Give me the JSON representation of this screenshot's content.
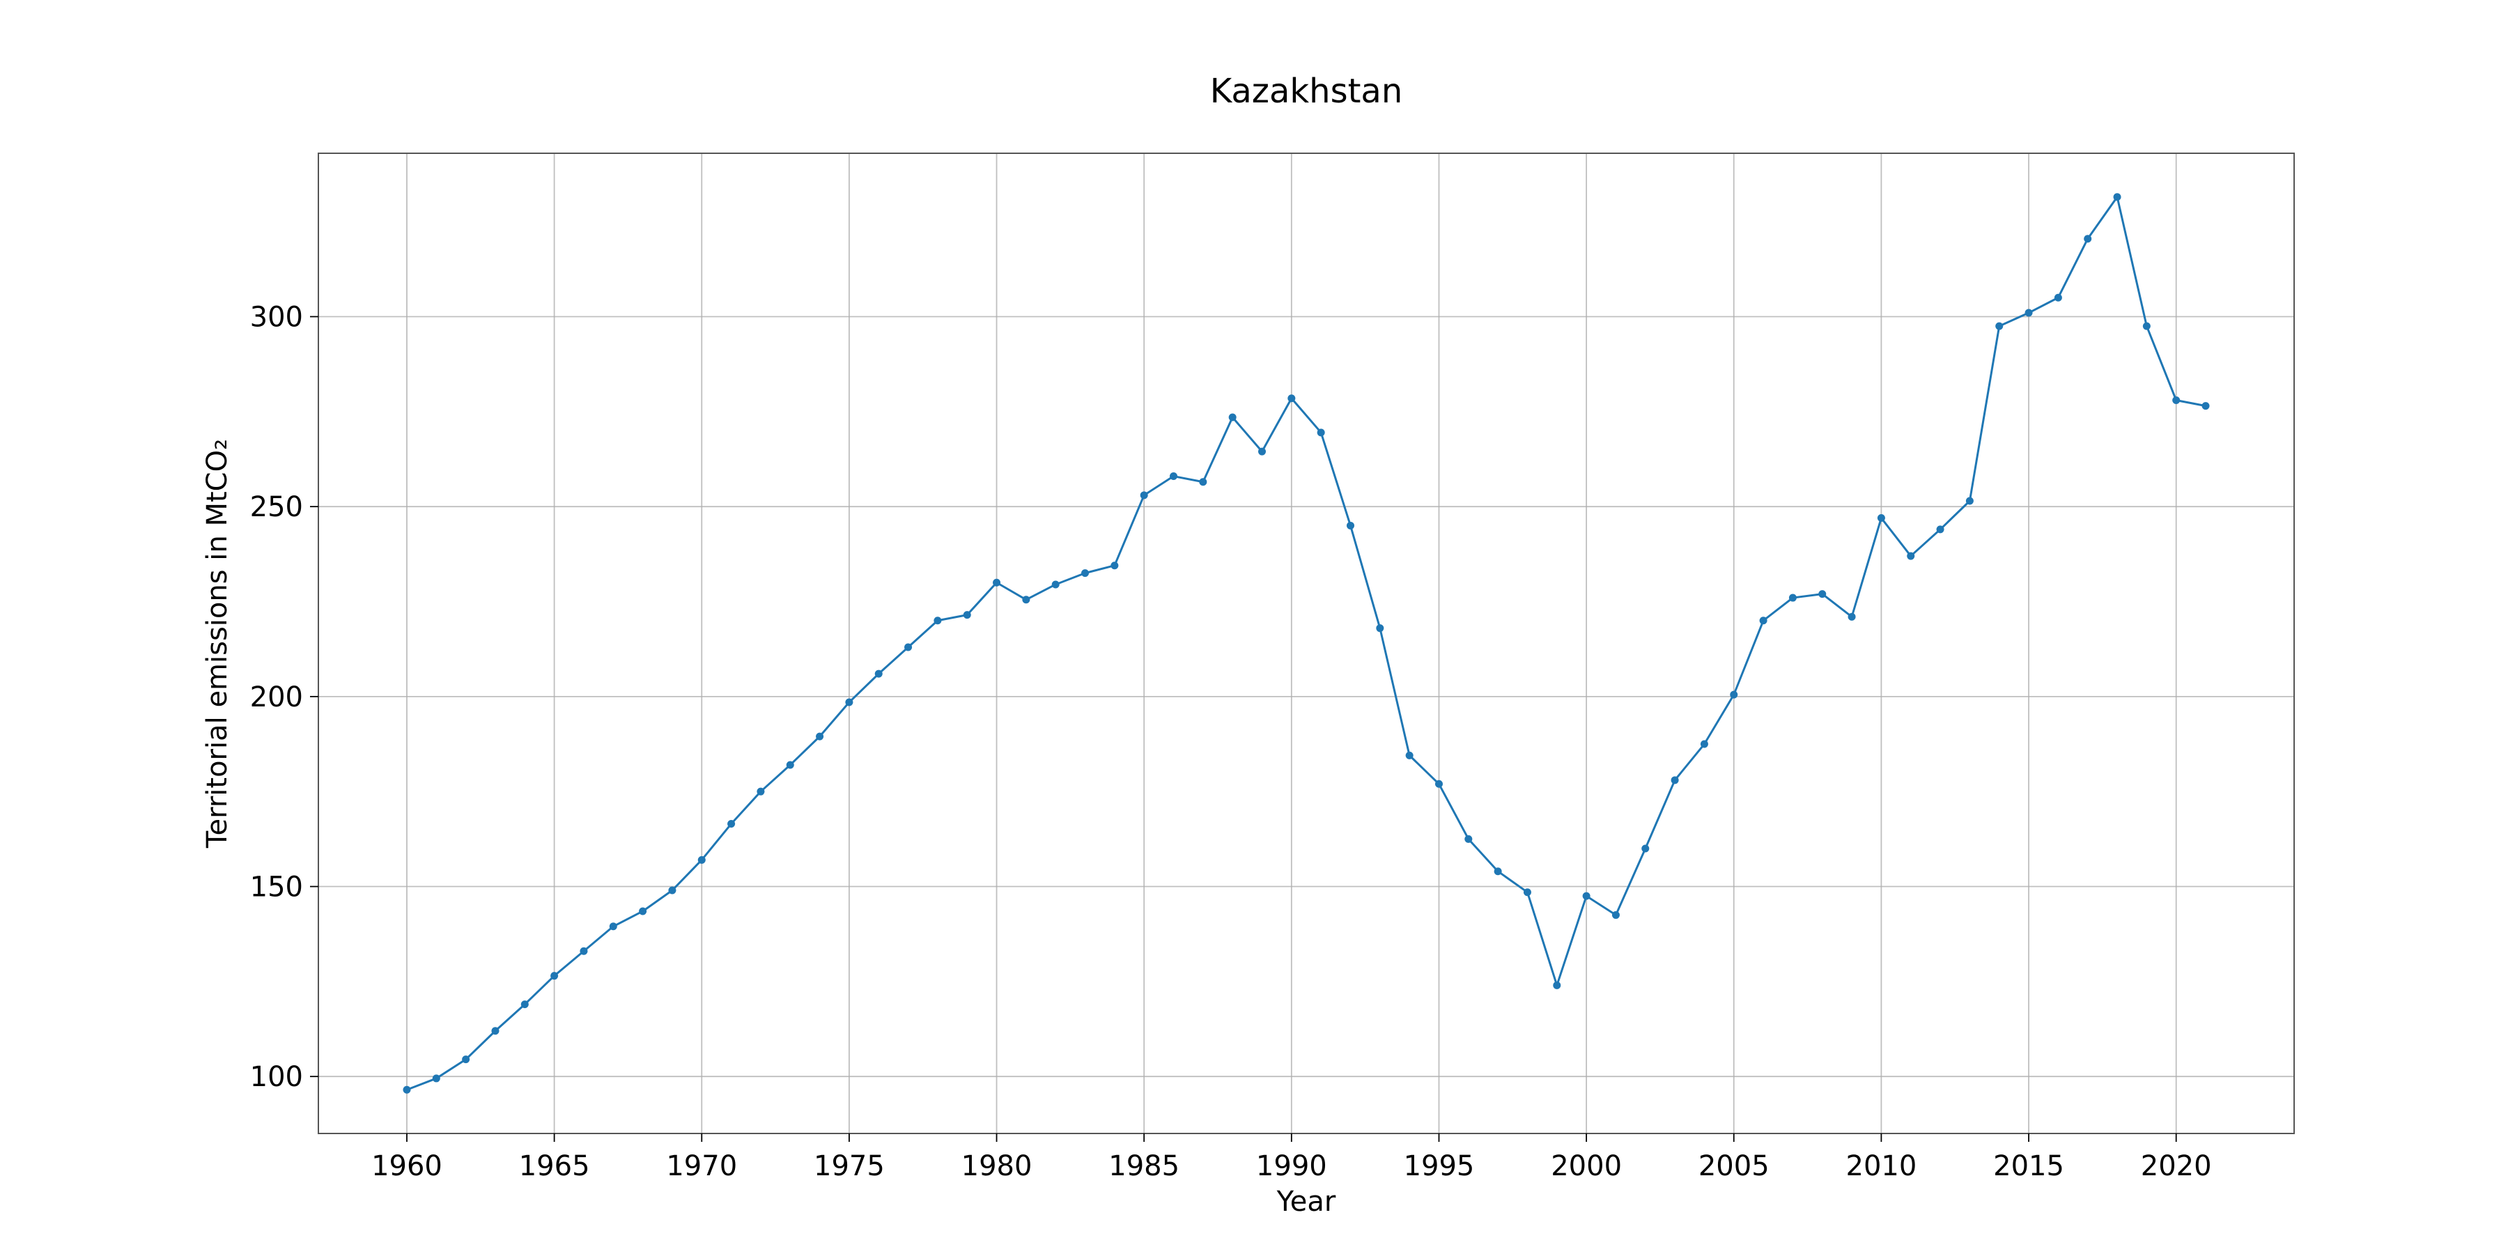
{
  "chart_data": {
    "type": "line",
    "title": "Kazakhstan",
    "xlabel": "Year",
    "ylabel": "Territorial emissions in MtCO₂",
    "xlim": [
      1957,
      2024
    ],
    "ylim": [
      85,
      343
    ],
    "xticks": [
      1960,
      1965,
      1970,
      1975,
      1980,
      1985,
      1990,
      1995,
      2000,
      2005,
      2010,
      2015,
      2020
    ],
    "yticks": [
      100,
      150,
      200,
      250,
      300
    ],
    "grid": true,
    "legend": "none",
    "series": [
      {
        "color": "#1f77b4",
        "marker": "circle",
        "x": [
          1960,
          1961,
          1962,
          1963,
          1964,
          1965,
          1966,
          1967,
          1968,
          1969,
          1970,
          1971,
          1972,
          1973,
          1974,
          1975,
          1976,
          1977,
          1978,
          1979,
          1980,
          1981,
          1982,
          1983,
          1984,
          1985,
          1986,
          1987,
          1988,
          1989,
          1990,
          1991,
          1992,
          1993,
          1994,
          1995,
          1996,
          1997,
          1998,
          1999,
          2000,
          2001,
          2002,
          2003,
          2004,
          2005,
          2006,
          2007,
          2008,
          2009,
          2010,
          2011,
          2012,
          2013,
          2014,
          2015,
          2016,
          2017,
          2018,
          2019,
          2020,
          2021
        ],
        "y": [
          96.5,
          99.5,
          104.5,
          112,
          119,
          126.5,
          133,
          139.5,
          143.5,
          149,
          157,
          166.5,
          175,
          182,
          189.5,
          198.5,
          206,
          213,
          220,
          221.5,
          230,
          225.5,
          229.5,
          232.5,
          234.5,
          253,
          258,
          256.5,
          273.5,
          264.5,
          278.5,
          269.5,
          245,
          218,
          184.5,
          177,
          162.5,
          154,
          148.5,
          124,
          147.5,
          142.5,
          160,
          178,
          187.5,
          200.5,
          220,
          226,
          227,
          221,
          247,
          237,
          244,
          251.5,
          297.5,
          301,
          305,
          320.5,
          331.5,
          297.5,
          278,
          276.5
        ]
      }
    ]
  }
}
